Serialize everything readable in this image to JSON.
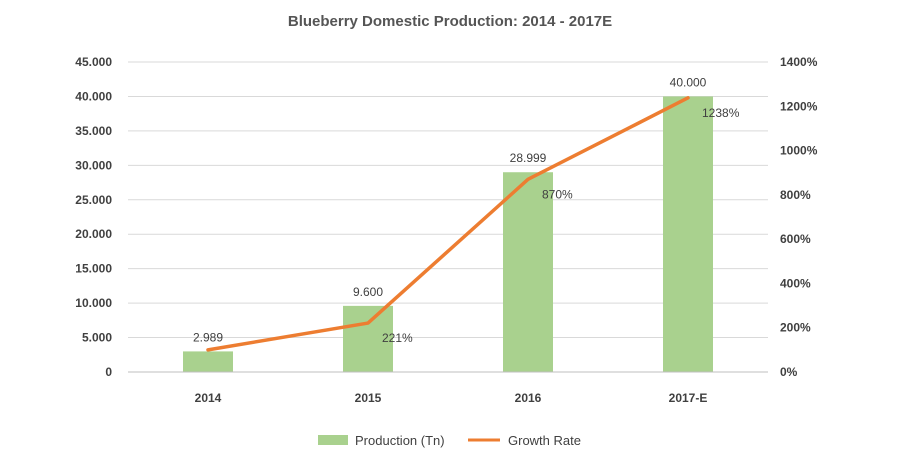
{
  "chart_data": {
    "type": "bar",
    "title": "Blueberry Domestic Production: 2014 - 2017E",
    "categories": [
      "2014",
      "2015",
      "2016",
      "2017-E"
    ],
    "series": [
      {
        "name": "Production (Tn)",
        "type": "bar",
        "axis": "left",
        "color": "#a9d18e",
        "values": [
          2989,
          9600,
          28999,
          40000
        ],
        "labels": [
          "2.989",
          "9.600",
          "28.999",
          "40.000"
        ]
      },
      {
        "name": "Growth Rate",
        "type": "line",
        "axis": "right",
        "color": "#ed7d31",
        "values": [
          100,
          221,
          870,
          1238
        ],
        "labels": [
          "",
          "221%",
          "870%",
          "1238%"
        ]
      }
    ],
    "y_left": {
      "min": 0,
      "max": 45000,
      "step": 5000,
      "tick_labels": [
        "0",
        "5.000",
        "10.000",
        "15.000",
        "20.000",
        "25.000",
        "30.000",
        "35.000",
        "40.000",
        "45.000"
      ]
    },
    "y_right": {
      "min": 0,
      "max": 1400,
      "step": 200,
      "tick_labels": [
        "0%",
        "200%",
        "400%",
        "600%",
        "800%",
        "1000%",
        "1200%",
        "1400%"
      ]
    },
    "grid": true,
    "legend_position": "bottom",
    "xlabel": "",
    "ylabel": ""
  }
}
